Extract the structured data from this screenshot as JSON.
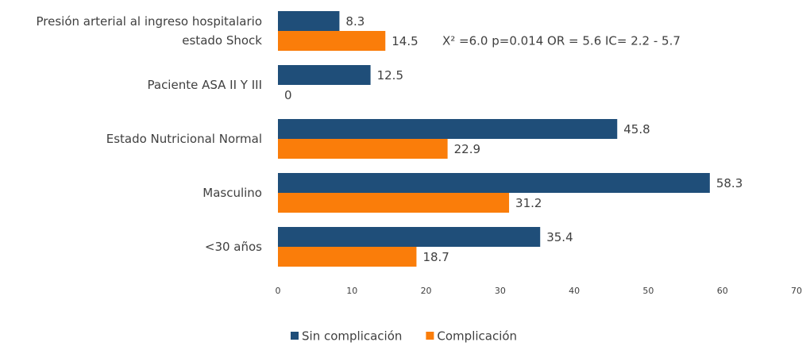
{
  "chart_data": {
    "type": "bar",
    "orientation": "horizontal",
    "categories": [
      "Presión arterial al ingreso hospitalario estado Shock",
      "Paciente ASA II Y III",
      "Estado Nutricional Normal",
      "Masculino",
      "<30 años"
    ],
    "series": [
      {
        "name": "Sin complicación",
        "color": "#1f4e79",
        "values": [
          8.3,
          12.5,
          45.8,
          58.3,
          35.4
        ]
      },
      {
        "name": "Complicación",
        "color": "#fa7d0a",
        "values": [
          14.5,
          0,
          22.9,
          31.2,
          18.7
        ]
      }
    ],
    "xlim": [
      0,
      70
    ],
    "xticks": [
      0,
      10,
      20,
      30,
      40,
      50,
      60,
      70
    ],
    "annotation": "X² =6.0  p=0.014   OR = 5.6  IC= 2.2 - 5.7",
    "legend": "bottom",
    "grid": false
  }
}
